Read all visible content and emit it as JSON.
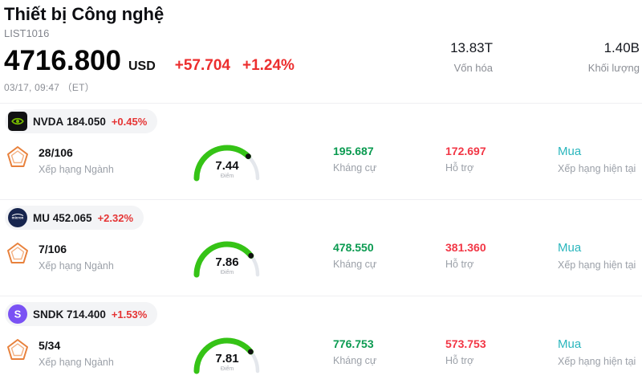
{
  "header": {
    "title": "Thiết bị Công nghệ",
    "list_id": "LIST1016",
    "price": "4716.800",
    "currency": "USD",
    "change": "+57.704",
    "change_pct": "+1.24%",
    "timestamp": "03/17, 09:47 （ET）",
    "market_cap_value": "13.83T",
    "market_cap_label": "Vốn hóa",
    "volume_value": "1.40B",
    "volume_label": "Khối lượng"
  },
  "labels": {
    "rank": "Xếp hạng Ngành",
    "score": "Điểm",
    "resistance": "Kháng cự",
    "support": "Hỗ trợ",
    "rating": "Xếp hạng hiện tại"
  },
  "colors": {
    "change_red": "#ec2e2e",
    "resistance_green": "#0a9a50",
    "support_red": "#f23645",
    "rating_teal": "#2ab6bd",
    "gauge_green": "#35c316",
    "gauge_track": "#e4e7ec",
    "nvidia_green": "#76b900",
    "micron_navy": "#17254e",
    "sandisk_purple": "#7a52f4",
    "badge_orange": "#e8813c"
  },
  "rows": [
    {
      "ticker": "NVDA",
      "price": "184.050",
      "change_pct": "+0.45%",
      "rank": "28/106",
      "score": "7.44",
      "score_value": 7.44,
      "resistance": "195.687",
      "support": "172.697",
      "rating": "Mua"
    },
    {
      "ticker": "MU",
      "price": "452.065",
      "change_pct": "+2.32%",
      "rank": "7/106",
      "score": "7.86",
      "score_value": 7.86,
      "resistance": "478.550",
      "support": "381.360",
      "rating": "Mua"
    },
    {
      "ticker": "SNDK",
      "price": "714.400",
      "change_pct": "+1.53%",
      "rank": "5/34",
      "score": "7.81",
      "score_value": 7.81,
      "resistance": "776.753",
      "support": "573.753",
      "rating": "Mua"
    }
  ]
}
